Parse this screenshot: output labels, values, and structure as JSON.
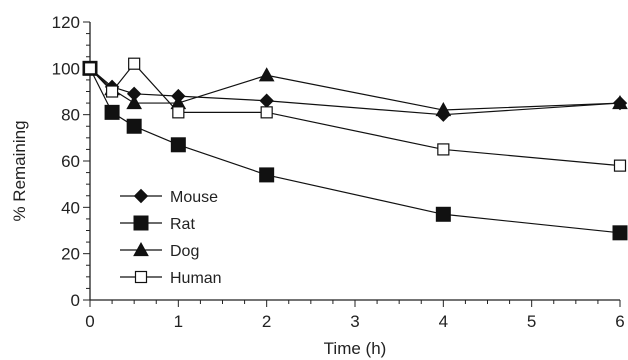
{
  "chart_data": {
    "type": "line",
    "title": "",
    "xlabel": "Time (h)",
    "ylabel": "% Remaining",
    "xlim": [
      0,
      6
    ],
    "ylim": [
      0,
      120
    ],
    "xticks": [
      0,
      1,
      2,
      3,
      4,
      5,
      6
    ],
    "yticks": [
      0,
      20,
      40,
      60,
      80,
      100,
      120
    ],
    "grid": false,
    "legend": "bottom-left",
    "series": [
      {
        "name": "Mouse",
        "marker": "diamond-filled",
        "color": "#111111",
        "points": [
          [
            0,
            100
          ],
          [
            0.25,
            92
          ],
          [
            0.5,
            89
          ],
          [
            1,
            88
          ],
          [
            2,
            86
          ],
          [
            4,
            80
          ],
          [
            6,
            85
          ]
        ]
      },
      {
        "name": "Rat",
        "marker": "square-filled",
        "color": "#111111",
        "points": [
          [
            0,
            100
          ],
          [
            0.25,
            81
          ],
          [
            0.5,
            75
          ],
          [
            1,
            67
          ],
          [
            2,
            54
          ],
          [
            4,
            37
          ],
          [
            6,
            29
          ]
        ]
      },
      {
        "name": "Dog",
        "marker": "triangle-filled",
        "color": "#111111",
        "points": [
          [
            0,
            100
          ],
          [
            0.25,
            91
          ],
          [
            0.5,
            85
          ],
          [
            1,
            85
          ],
          [
            2,
            97
          ],
          [
            4,
            82
          ],
          [
            6,
            85
          ]
        ]
      },
      {
        "name": "Human",
        "marker": "square-open",
        "color": "#111111",
        "points": [
          [
            0,
            100
          ],
          [
            0.25,
            90
          ],
          [
            0.5,
            102
          ],
          [
            1,
            81
          ],
          [
            2,
            81
          ],
          [
            4,
            65
          ],
          [
            6,
            58
          ]
        ]
      }
    ]
  }
}
